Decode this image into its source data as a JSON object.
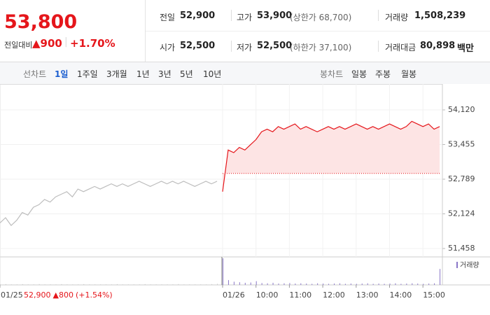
{
  "header": {
    "price": "53,800",
    "change_label": "전일대비",
    "change": "▲900",
    "change_pct": "+1.70%",
    "stats": [
      [
        {
          "label": "전일",
          "value": "52,900"
        },
        {
          "label": "고가",
          "value": "53,900",
          "note": "(상한가 68,700)"
        },
        {
          "label": "거래량",
          "value": "1,508,239"
        }
      ],
      [
        {
          "label": "시가",
          "value": "52,500"
        },
        {
          "label": "저가",
          "value": "52,500",
          "note": "(하한가 37,100)"
        },
        {
          "label": "거래대금",
          "value": "80,898",
          "note": "백만"
        }
      ]
    ]
  },
  "tabs": {
    "line_label": "선차트",
    "periods": [
      "1일",
      "1주일",
      "3개월",
      "1년",
      "3년",
      "5년",
      "10년"
    ],
    "candle_label": "봉차트",
    "candle_periods": [
      "일봉",
      "주봉",
      "월봉"
    ]
  },
  "chart_data": {
    "type": "line",
    "categories": [
      "01/25",
      null,
      null,
      null,
      null,
      null,
      null,
      null,
      null,
      null,
      null,
      null,
      null,
      null,
      null,
      null,
      null,
      null,
      null,
      null,
      null,
      null,
      null,
      null,
      null,
      null,
      null,
      null,
      null,
      null,
      null,
      null,
      null,
      null,
      null,
      null,
      null,
      null,
      null,
      null,
      "01/26",
      null,
      null,
      null,
      null,
      null,
      "10:00",
      null,
      null,
      null,
      null,
      null,
      "11:00",
      null,
      null,
      null,
      null,
      null,
      "12:00",
      null,
      null,
      null,
      null,
      null,
      "13:00",
      null,
      null,
      null,
      null,
      null,
      "14:00",
      null,
      null,
      null,
      null,
      null,
      "15:00",
      null,
      null,
      null
    ],
    "series": [
      {
        "color": "#bdbdbd",
        "values": [
          51950,
          52050,
          51900,
          52000,
          52150,
          52100,
          52250,
          52300,
          52400,
          52350,
          52450,
          52500,
          52550,
          52450,
          52600,
          52550,
          52600,
          52650,
          52600,
          52650,
          52700,
          52650,
          52700,
          52650,
          52700,
          52750,
          52700,
          52650,
          52700,
          52750,
          52700,
          52750,
          52700,
          52750,
          52700,
          52650,
          52700,
          52750,
          52700,
          52750,
          null,
          null,
          null,
          null,
          null,
          null,
          null,
          null,
          null,
          null,
          null,
          null,
          null,
          null,
          null,
          null,
          null,
          null,
          null,
          null,
          null,
          null,
          null,
          null,
          null,
          null,
          null,
          null,
          null,
          null,
          null,
          null,
          null,
          null,
          null,
          null,
          null,
          null,
          null,
          null
        ]
      },
      {
        "color": "#e5161b",
        "values": [
          null,
          null,
          null,
          null,
          null,
          null,
          null,
          null,
          null,
          null,
          null,
          null,
          null,
          null,
          null,
          null,
          null,
          null,
          null,
          null,
          null,
          null,
          null,
          null,
          null,
          null,
          null,
          null,
          null,
          null,
          null,
          null,
          null,
          null,
          null,
          null,
          null,
          null,
          null,
          null,
          52550,
          53350,
          53300,
          53400,
          53350,
          53450,
          53550,
          53700,
          53750,
          53700,
          53800,
          53750,
          53800,
          53850,
          53750,
          53800,
          53750,
          53700,
          53750,
          53800,
          53750,
          53800,
          53750,
          53800,
          53850,
          53800,
          53750,
          53800,
          53750,
          53800,
          53850,
          53800,
          53750,
          53800,
          53900,
          53850,
          53800,
          53850,
          53750,
          53800
        ]
      }
    ],
    "baseline": 52900,
    "volume": [
      2,
      3,
      2,
      2,
      3,
      2,
      2,
      3,
      2,
      2,
      2,
      3,
      2,
      2,
      2,
      3,
      2,
      2,
      2,
      2,
      2,
      3,
      2,
      2,
      2,
      2,
      3,
      2,
      2,
      2,
      2,
      2,
      3,
      2,
      2,
      2,
      2,
      2,
      3,
      4,
      100,
      18,
      12,
      10,
      8,
      9,
      14,
      7,
      6,
      8,
      5,
      6,
      7,
      5,
      6,
      5,
      4,
      6,
      5,
      4,
      5,
      6,
      4,
      5,
      4,
      5,
      6,
      4,
      5,
      4,
      5,
      6,
      4,
      5,
      6,
      5,
      4,
      5,
      6,
      60
    ],
    "volume_label": "거래량",
    "prev_summary": [
      "52,900",
      "▲800",
      "(+1.54%)"
    ],
    "ylim": [
      51297,
      54483
    ],
    "yticks": [
      {
        "value": 54120,
        "label": "54,120"
      },
      {
        "value": 53455,
        "label": "53,455"
      },
      {
        "value": 52789,
        "label": "52,789"
      },
      {
        "value": 52124,
        "label": "52,124"
      },
      {
        "value": 51458,
        "label": "51,458"
      }
    ],
    "grid": true
  }
}
